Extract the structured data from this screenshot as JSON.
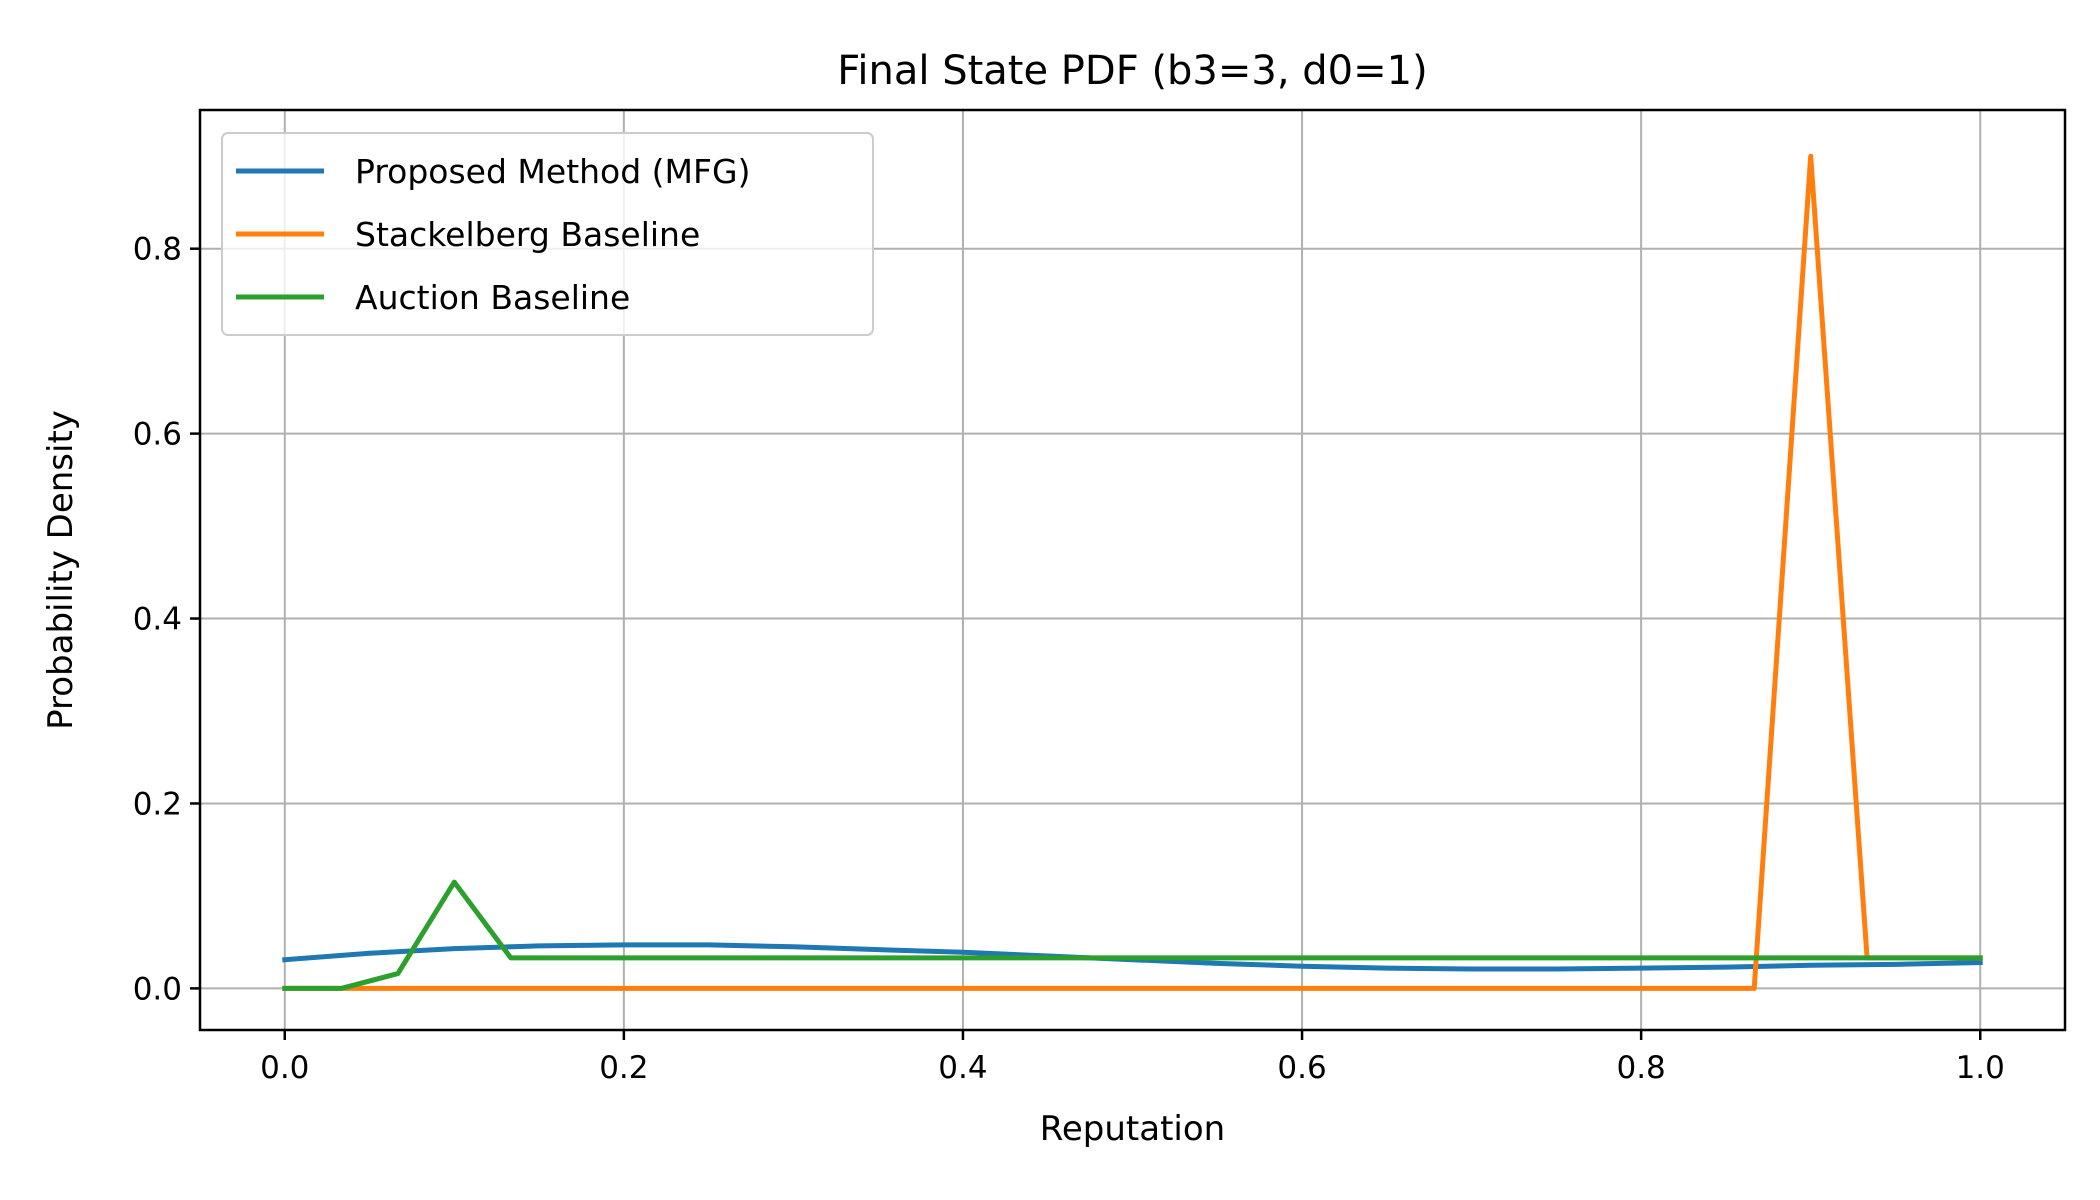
{
  "chart_data": {
    "type": "line",
    "title": "Final State PDF (b3=3, d0=1)",
    "xlabel": "Reputation",
    "ylabel": "Probability Density",
    "xlim": [
      -0.05,
      1.05
    ],
    "ylim": [
      -0.045,
      0.95
    ],
    "xticks": [
      0.0,
      0.2,
      0.4,
      0.6,
      0.8,
      1.0
    ],
    "xtick_labels": [
      "0.0",
      "0.2",
      "0.4",
      "0.6",
      "0.8",
      "1.0"
    ],
    "yticks": [
      0.0,
      0.2,
      0.4,
      0.6,
      0.8
    ],
    "ytick_labels": [
      "0.0",
      "0.2",
      "0.4",
      "0.6",
      "0.8"
    ],
    "grid": true,
    "legend_position": "upper-left",
    "series": [
      {
        "name": "Proposed Method (MFG)",
        "color": "#1f77b4",
        "x": [
          0.0,
          0.05,
          0.1,
          0.15,
          0.2,
          0.25,
          0.3,
          0.35,
          0.4,
          0.45,
          0.5,
          0.55,
          0.6,
          0.65,
          0.7,
          0.75,
          0.8,
          0.85,
          0.9,
          0.95,
          1.0
        ],
        "y": [
          0.031,
          0.038,
          0.043,
          0.046,
          0.047,
          0.047,
          0.045,
          0.042,
          0.039,
          0.035,
          0.031,
          0.027,
          0.024,
          0.022,
          0.021,
          0.021,
          0.022,
          0.023,
          0.025,
          0.026,
          0.028
        ]
      },
      {
        "name": "Stackelberg Baseline",
        "color": "#ff7f0e",
        "x": [
          0.0,
          0.8667,
          0.9,
          0.9333,
          0.9333,
          1.0
        ],
        "y": [
          0.0,
          0.0,
          0.9,
          0.033,
          0.033,
          0.033
        ]
      },
      {
        "name": "Auction Baseline",
        "color": "#2ca02c",
        "x": [
          0.0,
          0.0333,
          0.0667,
          0.1,
          0.1333,
          0.2,
          0.4,
          0.6,
          0.8,
          1.0
        ],
        "y": [
          0.0,
          0.0,
          0.016,
          0.115,
          0.033,
          0.033,
          0.033,
          0.033,
          0.033,
          0.033
        ]
      }
    ]
  }
}
